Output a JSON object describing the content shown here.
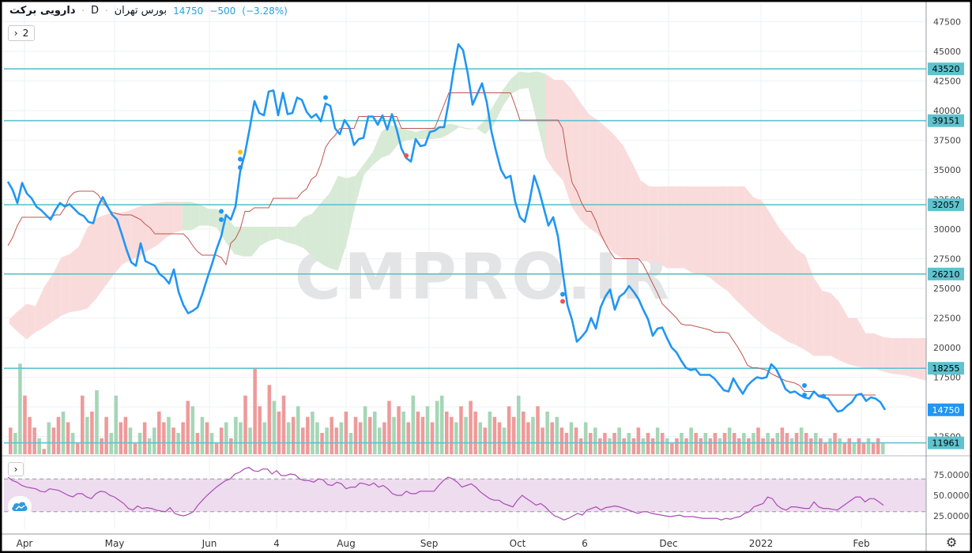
{
  "header": {
    "symbol": "دارویی برکت",
    "interval": "D",
    "exchange": "بورس تهران",
    "last": "14750",
    "change": "−500",
    "change_pct": "(−3.28%)",
    "indicator_count": "2"
  },
  "watermark": "CMPRO.IR",
  "colors": {
    "price_line": "#2196f3",
    "level_line": "#5fc2ce",
    "base_line": "#c0554f",
    "cloud_green": "#d7ead5",
    "cloud_red": "#fadbdb",
    "rsi_band": "#eedcef",
    "rsi_line": "#a94bb5",
    "vol_up": "#a5d6b6",
    "vol_down": "#ef9a9a"
  },
  "chart_data": {
    "type": "line",
    "price_axis": {
      "ylim": [
        11000,
        48500
      ],
      "ticks": [
        12500,
        15000,
        17500,
        20000,
        22500,
        25000,
        27500,
        30000,
        32500,
        35000,
        37500,
        40000,
        42500,
        45000,
        47500
      ]
    },
    "x_labels": [
      "Apr",
      "May",
      "Jun",
      "4",
      "Aug",
      "Sep",
      "Oct",
      "6",
      "Dec",
      "2022",
      "Feb"
    ],
    "levels": [
      43520,
      39151,
      32057,
      26210,
      18255,
      11961
    ],
    "last_price": 14750,
    "series": [
      {
        "values": [
          34000,
          33300,
          32200,
          33900,
          33000,
          32600,
          31900,
          31600,
          31200,
          30800,
          31600,
          32200,
          31900,
          32100,
          31700,
          31300,
          31100,
          30600,
          30500,
          31900,
          32700,
          31900,
          31200,
          30800,
          29600,
          28300,
          27200,
          26900,
          28800,
          27300,
          27100,
          26900,
          26200,
          25900,
          25400,
          26600,
          24700,
          23600,
          22900,
          23100,
          23400,
          24500,
          25800,
          27000,
          28300,
          29400,
          31200,
          30800,
          31900,
          34900,
          36400,
          38500,
          40800,
          39800,
          39600,
          41600,
          41700,
          39600,
          41500,
          39700,
          39800,
          41100,
          40900,
          39900,
          39400,
          39700,
          39100,
          40600,
          40400,
          38500,
          38000,
          39200,
          38600,
          37100,
          37600,
          37700,
          39500,
          39500,
          38800,
          39600,
          38400,
          39700,
          38400,
          36800,
          36000,
          35700,
          37600,
          37000,
          37100,
          38200,
          38300,
          38600,
          38600,
          40800,
          43400,
          45600,
          45100,
          43100,
          40500,
          41400,
          42300,
          40700,
          38200,
          36500,
          35000,
          34300,
          34500,
          32300,
          31000,
          30600,
          32300,
          34500,
          33300,
          31800,
          30300,
          31000,
          29400,
          26400,
          23600,
          22300,
          20500,
          20900,
          21400,
          22500,
          21600,
          23400,
          24300,
          24900,
          23200,
          24300,
          24600,
          25200,
          24700,
          24100,
          23200,
          22400,
          21000,
          21600,
          21700,
          20800,
          20000,
          19600,
          18900,
          18300,
          18100,
          18200,
          17700,
          17700,
          17700,
          17400,
          16900,
          16400,
          16300,
          17400,
          16700,
          16100,
          16800,
          17200,
          17500,
          17400,
          17500,
          18600,
          18200,
          17400,
          16500,
          16200,
          16300,
          16000,
          15800,
          15700,
          16300,
          15900,
          15800,
          15700,
          15100,
          14600,
          14700,
          15100,
          15400,
          16000,
          16100,
          15500,
          15800,
          15700,
          15400,
          14750
        ]
      }
    ],
    "ichimoku_base": [
      28600,
      29300,
      30300,
      31000,
      31000,
      31000,
      31000,
      31000,
      31000,
      31000,
      31200,
      31200,
      31800,
      32700,
      33100,
      33200,
      33200,
      33200,
      33200,
      32900,
      32300,
      31800,
      31400,
      31300,
      31200,
      31200,
      31200,
      31000,
      30800,
      30400,
      30100,
      29600,
      29600,
      29600,
      29600,
      29600,
      29600,
      29600,
      29200,
      28600,
      28100,
      27800,
      27800,
      27800,
      27800,
      27600,
      27000,
      28800,
      29200,
      30000,
      31500,
      31500,
      31800,
      31800,
      31800,
      31800,
      32600,
      32600,
      32600,
      32600,
      32600,
      32600,
      33100,
      33400,
      34200,
      34500,
      35500,
      36900,
      37500,
      37900,
      38500,
      38500,
      38500,
      38500,
      39500,
      39500,
      39500,
      39500,
      39500,
      39500,
      39500,
      39500,
      39500,
      38500,
      38500,
      38500,
      38500,
      38500,
      38500,
      38500,
      38500,
      39500,
      40500,
      41500,
      41500,
      41500,
      41500,
      41500,
      41500,
      41500,
      41500,
      41500,
      41500,
      41500,
      41500,
      41500,
      41500,
      40400,
      39200,
      39200,
      39200,
      39200,
      39200,
      39200,
      39200,
      39200,
      39200,
      38500,
      35900,
      33900,
      33200,
      32200,
      31500,
      31500,
      30700,
      29600,
      28800,
      28100,
      27500,
      27500,
      27500,
      27500,
      27500,
      27500,
      27000,
      26200,
      25400,
      24600,
      23700,
      23300,
      22900,
      22500,
      22000,
      21900,
      21900,
      21800,
      21700,
      21600,
      21500,
      21300,
      21300,
      21300,
      21200,
      20600,
      20000,
      19300,
      18500,
      18300,
      18300,
      18200,
      18100,
      17800,
      17600,
      17400,
      17200,
      17100,
      17000,
      16800,
      16300,
      16300,
      16300,
      16000,
      16000,
      16000,
      16000,
      16000,
      16000,
      16000,
      16000,
      16000,
      16000,
      16000,
      16000,
      16000
    ],
    "ichimoku_cloud": {
      "upper": [
        22400,
        23100,
        23700,
        23500,
        25100,
        26200,
        27600,
        27900,
        28500,
        30100,
        30900,
        31200,
        31400,
        31400,
        31600,
        31900,
        32100,
        32200,
        32300,
        32300,
        32300,
        32300,
        32100,
        31700,
        31700,
        31200,
        30200,
        30200,
        30200,
        30200,
        30200,
        30200,
        30200,
        30200,
        31000,
        31300,
        32200,
        33000,
        34500,
        34300,
        34500,
        35500,
        36500,
        38200,
        38800,
        38600,
        38400,
        38200,
        38400,
        38600,
        38700,
        38900,
        38700,
        38500,
        38500,
        39200,
        40500,
        41700,
        42700,
        43300,
        43200,
        43300,
        43100,
        42600,
        42600,
        41800,
        40700,
        39700,
        39200,
        38600,
        37900,
        37000,
        35600,
        34100,
        33600,
        33600,
        33600,
        33600,
        33600,
        33600,
        33600,
        33600,
        33600,
        33600,
        33600,
        33600,
        32700,
        32400,
        31300,
        30100,
        29200,
        28300,
        27800,
        25900,
        24800,
        24600,
        23800,
        22500,
        22500,
        21200,
        21200,
        20900,
        20800,
        20800,
        20800,
        20800,
        20800
      ],
      "lower": [
        22000,
        21300,
        20700,
        21300,
        21700,
        22200,
        22700,
        23000,
        23100,
        23300,
        24100,
        25100,
        26100,
        27000,
        27400,
        27700,
        28200,
        28600,
        29200,
        29700,
        29900,
        29900,
        30300,
        30300,
        30100,
        28900,
        27900,
        27700,
        27700,
        28600,
        29000,
        29200,
        28900,
        28700,
        28400,
        27700,
        27100,
        26700,
        26500,
        28800,
        32000,
        34600,
        35400,
        36000,
        36300,
        37200,
        37500,
        37600,
        37600,
        37600,
        37700,
        38100,
        38600,
        38400,
        38500,
        38000,
        38800,
        40300,
        41400,
        41800,
        41900,
        39000,
        36000,
        34900,
        34100,
        31900,
        30800,
        30100,
        29600,
        28700,
        27900,
        27500,
        27500,
        27500,
        27200,
        27200,
        26700,
        26700,
        26700,
        26300,
        26200,
        25900,
        25300,
        24800,
        24000,
        23300,
        22600,
        22000,
        21400,
        21000,
        20500,
        20200,
        19800,
        19300,
        19300,
        19300,
        18900,
        18600,
        18400,
        18300,
        18200,
        18000,
        17800,
        17700,
        17600,
        17400,
        17200
      ]
    },
    "volume_relative": [
      0.25,
      0.2,
      0.85,
      0.55,
      0.35,
      0.25,
      0.15,
      0.05,
      0.3,
      0.25,
      0.35,
      0.4,
      0.3,
      0.2,
      0.1,
      0.55,
      0.35,
      0.4,
      0.6,
      0.15,
      0.35,
      0.2,
      0.55,
      0.3,
      0.35,
      0.25,
      0.1,
      0.2,
      0.3,
      0.15,
      0.25,
      0.4,
      0.3,
      0.35,
      0.25,
      0.2,
      0.3,
      0.5,
      0.45,
      0.2,
      0.35,
      0.3,
      0.2,
      0.1,
      0.25,
      0.3,
      0.15,
      0.35,
      0.3,
      0.55,
      0.25,
      0.8,
      0.45,
      0.3,
      0.65,
      0.5,
      0.4,
      0.55,
      0.3,
      0.35,
      0.45,
      0.25,
      0.35,
      0.4,
      0.3,
      0.2,
      0.25,
      0.35,
      0.25,
      0.3,
      0.4,
      0.2,
      0.35,
      0.3,
      0.45,
      0.35,
      0.4,
      0.25,
      0.3,
      0.5,
      0.35,
      0.45,
      0.4,
      0.3,
      0.55,
      0.4,
      0.35,
      0.45,
      0.3,
      0.5,
      0.55,
      0.4,
      0.35,
      0.3,
      0.45,
      0.35,
      0.5,
      0.4,
      0.3,
      0.25,
      0.4,
      0.35,
      0.3,
      0.25,
      0.45,
      0.35,
      0.55,
      0.4,
      0.3,
      0.35,
      0.45,
      0.25,
      0.4,
      0.3,
      0.35,
      0.25,
      0.2,
      0.3,
      0.25,
      0.15,
      0.3,
      0.2,
      0.25,
      0.15,
      0.2,
      0.15,
      0.2,
      0.25,
      0.15,
      0.2,
      0.15,
      0.25,
      0.15,
      0.2,
      0.15,
      0.25,
      0.2,
      0.15,
      0.1,
      0.15,
      0.2,
      0.15,
      0.25,
      0.2,
      0.15,
      0.2,
      0.15,
      0.2,
      0.15,
      0.2,
      0.25,
      0.2,
      0.15,
      0.2,
      0.15,
      0.2,
      0.25,
      0.15,
      0.2,
      0.15,
      0.2,
      0.25,
      0.2,
      0.15,
      0.2,
      0.25,
      0.2,
      0.15,
      0.2,
      0.15,
      0.1,
      0.15,
      0.2,
      0.15,
      0.1,
      0.15,
      0.1,
      0.15,
      0.1,
      0.15,
      0.1,
      0.15,
      0.1
    ],
    "volume_up_pattern": [
      0,
      1,
      1,
      0,
      0,
      0,
      1,
      0,
      1,
      0,
      0,
      1,
      0,
      1,
      0,
      0,
      1,
      0,
      1,
      0,
      0,
      1,
      1,
      0,
      0,
      1,
      0,
      1,
      0,
      1,
      1,
      0,
      0,
      1,
      0,
      1,
      0,
      0,
      1,
      0,
      1,
      0,
      1,
      0,
      0,
      1,
      0,
      1,
      1,
      0,
      1,
      0,
      0,
      1,
      0,
      1,
      0,
      0,
      1,
      0,
      1,
      0,
      0,
      1,
      1,
      0,
      1,
      0,
      0,
      1,
      0,
      1,
      0,
      0,
      1,
      0,
      1,
      1,
      0,
      0,
      1,
      0,
      1,
      0,
      1,
      0,
      0,
      1,
      0,
      1,
      1,
      0,
      0,
      1,
      0,
      1,
      0,
      0,
      1,
      0,
      1,
      0,
      0,
      1,
      0,
      0,
      1,
      0,
      0,
      1,
      0,
      0,
      1,
      0,
      1,
      0,
      0,
      1,
      0,
      0,
      1,
      0,
      1,
      0,
      0,
      1,
      0,
      1,
      0,
      1,
      0,
      0,
      1,
      0,
      0,
      1,
      0,
      1,
      0,
      0,
      1,
      0,
      1,
      0,
      0,
      1,
      0,
      0,
      1,
      0,
      1,
      0,
      0,
      1,
      0,
      1,
      0,
      0,
      1,
      0,
      1,
      0,
      0,
      1,
      0,
      1,
      0,
      0,
      1,
      0,
      0,
      1,
      0,
      1,
      0,
      0,
      1,
      0,
      0,
      1,
      0,
      0,
      1,
      0,
      1,
      0,
      0,
      1,
      0,
      0
    ],
    "rsi": {
      "ylim": [
        10,
        90
      ],
      "ticks": [
        25,
        50,
        75
      ],
      "bands": [
        30,
        70
      ],
      "values": [
        72,
        68,
        66,
        62,
        60,
        59,
        58,
        55,
        54,
        58,
        57,
        56,
        53,
        50,
        48,
        52,
        52,
        48,
        46,
        52,
        55,
        54,
        50,
        48,
        44,
        40,
        34,
        32,
        37,
        34,
        35,
        34,
        32,
        31,
        30,
        35,
        28,
        26,
        25,
        27,
        30,
        38,
        44,
        50,
        55,
        60,
        64,
        68,
        70,
        76,
        78,
        82,
        84,
        80,
        79,
        82,
        82,
        76,
        80,
        74,
        74,
        76,
        75,
        70,
        68,
        68,
        66,
        70,
        69,
        63,
        62,
        66,
        64,
        58,
        60,
        60,
        65,
        64,
        62,
        65,
        60,
        62,
        58,
        52,
        50,
        50,
        55,
        52,
        52,
        55,
        55,
        55,
        55,
        62,
        68,
        72,
        70,
        66,
        60,
        62,
        64,
        60,
        54,
        50,
        46,
        44,
        44,
        40,
        38,
        36,
        44,
        50,
        46,
        42,
        38,
        40,
        36,
        30,
        25,
        23,
        20,
        22,
        25,
        28,
        26,
        32,
        34,
        36,
        32,
        35,
        36,
        37,
        36,
        34,
        32,
        30,
        28,
        30,
        30,
        28,
        27,
        26,
        25,
        24,
        25,
        26,
        24,
        24,
        24,
        23,
        22,
        22,
        22,
        22,
        20,
        22,
        21,
        23,
        24,
        28,
        30,
        36,
        38,
        40,
        48,
        46,
        38,
        34,
        32,
        36,
        36,
        35,
        34,
        34,
        42,
        36,
        34,
        34,
        33,
        32,
        36,
        40,
        44,
        48,
        48,
        42,
        46,
        46,
        42,
        38
      ]
    },
    "signal_dots": [
      {
        "i": 45,
        "v": 30800,
        "c": "#2196f3"
      },
      {
        "i": 45,
        "v": 31500,
        "c": "#2196f3"
      },
      {
        "i": 49,
        "v": 35200,
        "c": "#2196f3"
      },
      {
        "i": 49,
        "v": 35900,
        "c": "#2196f3"
      },
      {
        "i": 49,
        "v": 36500,
        "c": "#ffc107"
      },
      {
        "i": 67,
        "v": 41100,
        "c": "#2196f3"
      },
      {
        "i": 84,
        "v": 36200,
        "c": "#ef5350"
      },
      {
        "i": 117,
        "v": 24500,
        "c": "#2196f3"
      },
      {
        "i": 117,
        "v": 23900,
        "c": "#ef5350"
      },
      {
        "i": 168,
        "v": 16800,
        "c": "#2196f3"
      },
      {
        "i": 168,
        "v": 16000,
        "c": "#2196f3"
      },
      {
        "i": 172,
        "v": 15900,
        "c": "#2196f3"
      }
    ]
  }
}
